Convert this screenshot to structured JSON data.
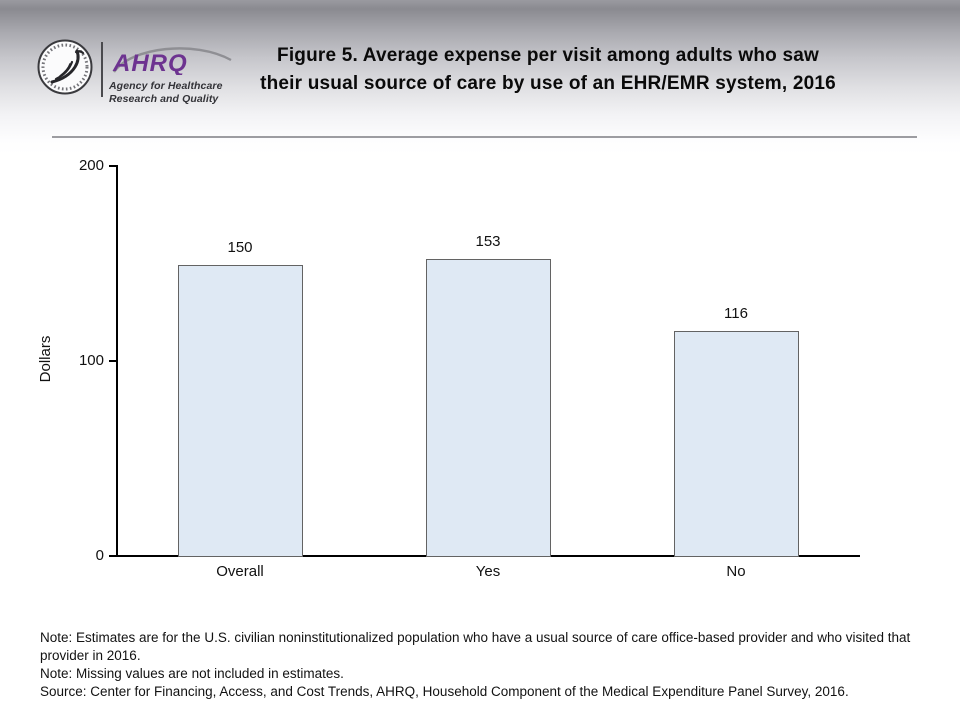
{
  "header": {
    "logo": {
      "hhs_seal": "hhs-eagle-seal",
      "ahrq_acronym": "AHRQ",
      "agency_line1": "Agency for Healthcare",
      "agency_line2": "Research and Quality",
      "ahrq_purple": "#6d3390"
    },
    "title_line1": "Figure 5. Average expense per visit among adults who saw",
    "title_line2": "their usual source of care by use of an EHR/EMR system, 2016"
  },
  "chart_data": {
    "type": "bar",
    "title": "Figure 5. Average expense per visit among adults who saw their usual source of care by use of an EHR/EMR system, 2016",
    "categories": [
      "Overall",
      "Yes",
      "No"
    ],
    "values": [
      150,
      153,
      116
    ],
    "xlabel": "",
    "ylabel": "Dollars",
    "ylim": [
      0,
      200
    ],
    "yticks": [
      0,
      100,
      200
    ],
    "grid": false,
    "legend": false,
    "bar_fill": "#dfe9f4",
    "bar_border": "#636363"
  },
  "notes": {
    "note1": "Note: Estimates are for the U.S. civilian noninstitutionalized population who have a usual source of care office-based provider and who visited that provider in 2016.",
    "note2": "Note: Missing values are not included in estimates.",
    "source": "Source: Center for Financing, Access, and Cost Trends, AHRQ, Household Component of the Medical Expenditure Panel Survey, 2016."
  },
  "colors": {
    "header_gradient_top": "#8a8a90",
    "header_rule": "#9c9ca1",
    "axis": "#000000",
    "text": "#0d0d0d"
  }
}
